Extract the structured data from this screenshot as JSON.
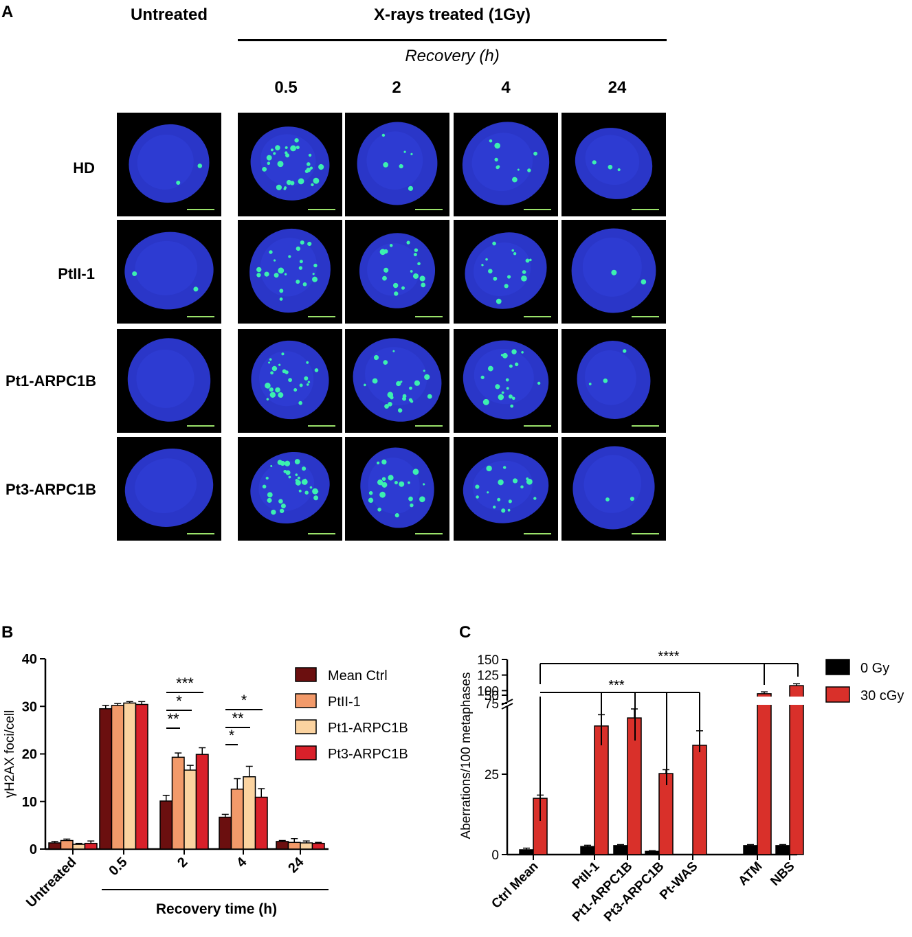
{
  "panelA": {
    "letter": "A",
    "header_untreated": "Untreated",
    "header_treated": "X-rays treated (1Gy)",
    "header_recovery": "Recovery (h)",
    "timepoints": [
      "0.5",
      "2",
      "4",
      "24"
    ],
    "rows": [
      "HD",
      "PtII-1",
      "Pt1-ARPC1B",
      "Pt3-ARPC1B"
    ],
    "colors": {
      "nucleus": "#2a36c8",
      "foci": "#3cf0b0",
      "scalebar": "#9be36a"
    }
  },
  "chart_data": [
    {
      "type": "bar",
      "letter": "B",
      "categories": [
        "Untreated",
        "0.5",
        "2",
        "4",
        "24"
      ],
      "series": [
        {
          "name": "Mean Ctrl",
          "color": "#6b0f0f",
          "values": [
            1.3,
            29.5,
            10.1,
            6.7,
            1.6
          ],
          "errors": [
            0.3,
            0.7,
            1.2,
            0.6,
            0.2
          ]
        },
        {
          "name": "PtII-1",
          "color": "#f29a6a",
          "values": [
            1.8,
            30.2,
            19.3,
            12.6,
            1.4
          ],
          "errors": [
            0.3,
            0.4,
            0.9,
            2.2,
            0.8
          ]
        },
        {
          "name": "Pt1-ARPC1B",
          "color": "#fbd3a0",
          "values": [
            1.0,
            30.7,
            16.6,
            15.2,
            1.3
          ],
          "errors": [
            0.2,
            0.3,
            1.0,
            2.2,
            0.4
          ]
        },
        {
          "name": "Pt3-ARPC1B",
          "color": "#d9202a",
          "values": [
            1.2,
            30.4,
            19.9,
            10.9,
            1.2
          ],
          "errors": [
            0.5,
            0.6,
            1.4,
            1.8,
            0.2
          ]
        }
      ],
      "ylabel": "γH2AX foci/cell",
      "xlabel": "Recovery time (h)",
      "ylim": [
        0,
        40
      ],
      "yticks": [
        "0",
        "10",
        "20",
        "30",
        "40"
      ],
      "significance": {
        "t2": [
          "***",
          "*",
          "**"
        ],
        "t4": [
          "*",
          "**",
          "*"
        ]
      },
      "legend": "right"
    },
    {
      "type": "bar",
      "letter": "C",
      "categories": [
        "Ctrl Mean",
        "PtII-1",
        "Pt1-ARPC1B",
        "Pt3-ARPC1B",
        "Pt-WAS",
        "ATM",
        "NBS"
      ],
      "series": [
        {
          "name": "0 Gy",
          "color": "#000000",
          "values": [
            1.5,
            2.5,
            2.8,
            1.0,
            null,
            2.8,
            2.8
          ],
          "errors": [
            0.5,
            0.4,
            0.3,
            0.2,
            null,
            0.3,
            0.3
          ]
        },
        {
          "name": "30 cGy",
          "color": "#d9302a",
          "values": [
            17.5,
            40.0,
            42.5,
            25.2,
            34.0,
            95.0,
            108.0
          ],
          "errors": [
            1.0,
            3.5,
            2.8,
            1.2,
            4.5,
            3.0,
            3.0
          ]
        }
      ],
      "ylabel": "Aberrations/100 metaphases",
      "ylim": [
        0,
        150
      ],
      "axis_break": [
        50,
        75
      ],
      "yticks": [
        "0",
        "25",
        "50",
        "75",
        "100",
        "125",
        "150"
      ],
      "significance": [
        "****",
        "***"
      ],
      "legend": "right"
    }
  ]
}
